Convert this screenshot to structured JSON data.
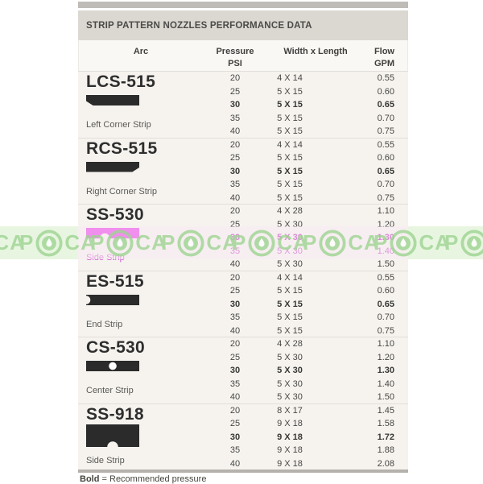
{
  "title": "STRIP PATTERN NOZZLES PERFORMANCE DATA",
  "columns": {
    "arc": "Arc",
    "pressure": "Pressure",
    "pressure_unit": "PSI",
    "width_length": "Width x Length",
    "flow": "Flow",
    "flow_unit": "GPM"
  },
  "nozzles": [
    {
      "model": "LCS-515",
      "label": "Left Corner Strip",
      "shape": "lcs",
      "bold_row": 2,
      "watermark_rows": [],
      "rows": [
        {
          "pressure": "20",
          "width_length": "4 X 14",
          "flow": "0.55"
        },
        {
          "pressure": "25",
          "width_length": "5 X 15",
          "flow": "0.60"
        },
        {
          "pressure": "30",
          "width_length": "5 X 15",
          "flow": "0.65"
        },
        {
          "pressure": "35",
          "width_length": "5 X 15",
          "flow": "0.70"
        },
        {
          "pressure": "40",
          "width_length": "5 X 15",
          "flow": "0.75"
        }
      ]
    },
    {
      "model": "RCS-515",
      "label": "Right Corner Strip",
      "shape": "rcs",
      "bold_row": 2,
      "watermark_rows": [],
      "rows": [
        {
          "pressure": "20",
          "width_length": "4 X 14",
          "flow": "0.55"
        },
        {
          "pressure": "25",
          "width_length": "5 X 15",
          "flow": "0.60"
        },
        {
          "pressure": "30",
          "width_length": "5 X 15",
          "flow": "0.65"
        },
        {
          "pressure": "35",
          "width_length": "5 X 15",
          "flow": "0.70"
        },
        {
          "pressure": "40",
          "width_length": "5 X 15",
          "flow": "0.75"
        }
      ]
    },
    {
      "model": "SS-530",
      "label": "Side Strip",
      "shape": "ss530",
      "bold_row": 2,
      "watermark_rows": [
        2,
        3
      ],
      "label_magenta": true,
      "rows": [
        {
          "pressure": "20",
          "width_length": "4 X 28",
          "flow": "1.10"
        },
        {
          "pressure": "25",
          "width_length": "5 X 30",
          "flow": "1.20"
        },
        {
          "pressure": "30",
          "width_length": "5 X 30",
          "flow": "1.30"
        },
        {
          "pressure": "35",
          "width_length": "5 X 30",
          "flow": "1.40"
        },
        {
          "pressure": "40",
          "width_length": "5 X 30",
          "flow": "1.50"
        }
      ]
    },
    {
      "model": "ES-515",
      "label": "End Strip",
      "shape": "es",
      "bold_row": 2,
      "watermark_rows": [],
      "rows": [
        {
          "pressure": "20",
          "width_length": "4 X 14",
          "flow": "0.55"
        },
        {
          "pressure": "25",
          "width_length": "5 X 15",
          "flow": "0.60"
        },
        {
          "pressure": "30",
          "width_length": "5 X 15",
          "flow": "0.65"
        },
        {
          "pressure": "35",
          "width_length": "5 X 15",
          "flow": "0.70"
        },
        {
          "pressure": "40",
          "width_length": "5 X 15",
          "flow": "0.75"
        }
      ]
    },
    {
      "model": "CS-530",
      "label": "Center Strip",
      "shape": "cs",
      "bold_row": 2,
      "watermark_rows": [],
      "rows": [
        {
          "pressure": "20",
          "width_length": "4 X 28",
          "flow": "1.10"
        },
        {
          "pressure": "25",
          "width_length": "5 X 30",
          "flow": "1.20"
        },
        {
          "pressure": "30",
          "width_length": "5 X 30",
          "flow": "1.30"
        },
        {
          "pressure": "35",
          "width_length": "5 X 30",
          "flow": "1.40"
        },
        {
          "pressure": "40",
          "width_length": "5 X 30",
          "flow": "1.50"
        }
      ]
    },
    {
      "model": "SS-918",
      "label": "Side Strip",
      "shape": "ss918",
      "bold_row": 2,
      "watermark_rows": [],
      "rows": [
        {
          "pressure": "20",
          "width_length": "8 X 17",
          "flow": "1.45"
        },
        {
          "pressure": "25",
          "width_length": "9 X 18",
          "flow": "1.58"
        },
        {
          "pressure": "30",
          "width_length": "9 X 18",
          "flow": "1.72"
        },
        {
          "pressure": "35",
          "width_length": "9 X 18",
          "flow": "1.88"
        },
        {
          "pressure": "40",
          "width_length": "9 X 18",
          "flow": "2.08"
        }
      ]
    }
  ],
  "footer": {
    "bold_label": "Bold",
    "text": "= Recommended pressure"
  },
  "watermark": {
    "letter_p": "P",
    "letters_ca": "CA",
    "repeat_units": 8,
    "green": "#9ed492",
    "green_band": "#e7f5df",
    "pink_band": "#f7e9f3",
    "magenta_accent": "#cc22cc"
  }
}
